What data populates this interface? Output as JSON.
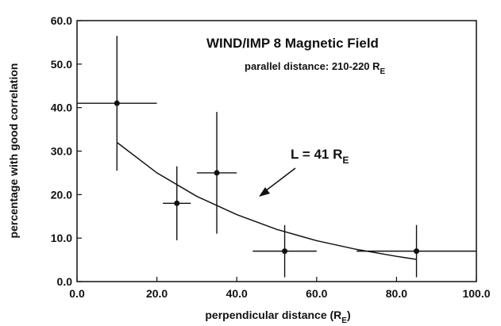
{
  "chart_data": {
    "type": "scatter",
    "xlabel": {
      "text": "perpendicular distance (R",
      "sub": "E",
      "tail": ")"
    },
    "ylabel": "percentage with good correlation",
    "annotations": [
      {
        "text": "WIND/IMP 8 Magnetic Field"
      },
      {
        "text": "parallel distance: 210-220 R",
        "sub": "E"
      },
      {
        "text": "L = 41 R",
        "sub": "E"
      }
    ],
    "xlim": [
      0,
      100
    ],
    "xticks": [
      {
        "value": 0,
        "label": "0.0"
      },
      {
        "value": 20,
        "label": "20.0"
      },
      {
        "value": 40,
        "label": "40.0"
      },
      {
        "value": 60,
        "label": "60.0"
      },
      {
        "value": 80,
        "label": "80.0"
      },
      {
        "value": 100,
        "label": "100.0"
      }
    ],
    "ylim": [
      0,
      60
    ],
    "yticks": [
      {
        "value": 0,
        "label": "0.0"
      },
      {
        "value": 10,
        "label": "10.0"
      },
      {
        "value": 20,
        "label": "20.0"
      },
      {
        "value": 30,
        "label": "30.0"
      },
      {
        "value": 40,
        "label": "40.0"
      },
      {
        "value": 50,
        "label": "50.0"
      },
      {
        "value": 60,
        "label": "60.0"
      }
    ],
    "series": [
      {
        "color": "#111111",
        "x": [
          10,
          25,
          35,
          52,
          85
        ],
        "values": [
          41,
          18,
          25,
          7,
          7
        ],
        "xerr": [
          10,
          3.5,
          5,
          8,
          15
        ],
        "yerr": [
          15.5,
          8.5,
          14,
          6,
          6
        ]
      },
      {
        "color": "#111111",
        "x": [
          10,
          20,
          30,
          40,
          50,
          60,
          70,
          80,
          85
        ],
        "values": [
          32,
          25,
          19.6,
          15.4,
          12,
          9.4,
          7.4,
          5.8,
          5.1
        ]
      }
    ]
  }
}
